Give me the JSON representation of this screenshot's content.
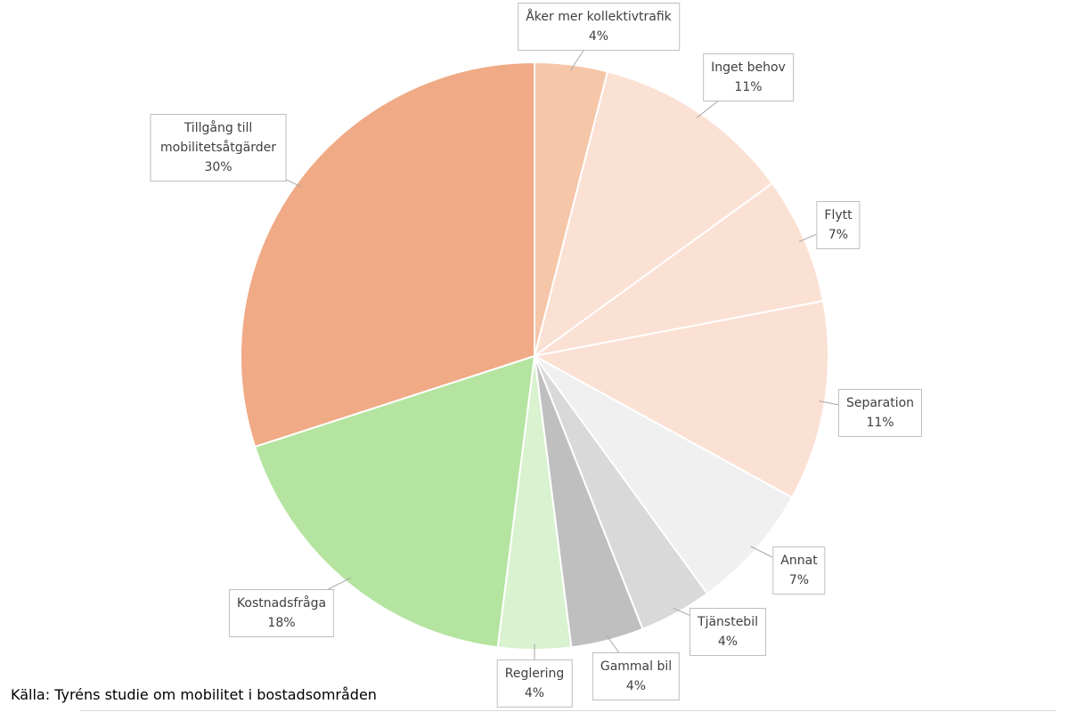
{
  "chart_data": {
    "type": "pie",
    "categories": [
      "Åker mer kollektivtrafik",
      "Inget behov",
      "Flytt",
      "Separation",
      "Annat",
      "Tjänstebil",
      "Gammal bil",
      "Reglering",
      "Kostnadsfråga",
      "Tillgång till mobilitetsåtgärder"
    ],
    "values": [
      4,
      11,
      7,
      11,
      7,
      4,
      4,
      4,
      18,
      30
    ],
    "value_labels": [
      "4%",
      "11%",
      "7%",
      "11%",
      "7%",
      "4%",
      "4%",
      "4%",
      "18%",
      "30%"
    ],
    "colors": [
      "#f5c6a8",
      "#fbe1d4",
      "#fbe1d4",
      "#fbe1d4",
      "#f0f0f0",
      "#d9d9d9",
      "#bfbfbf",
      "#d9f2d0",
      "#b4e4a0",
      "#f0aa85"
    ],
    "source": "Källa: Tyréns studie om mobilitet i bostadsområden"
  }
}
